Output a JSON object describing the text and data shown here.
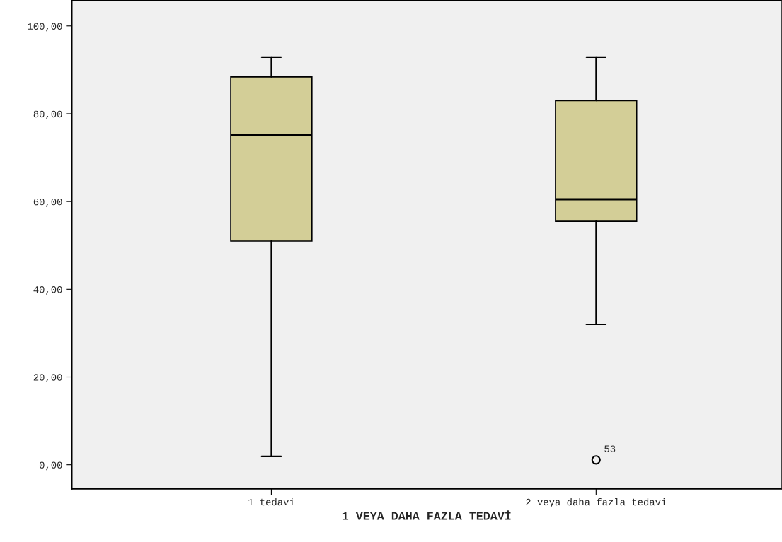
{
  "chart_data": {
    "type": "box",
    "xlabel": "1 VEYA DAHA FAZLA TEDAVİ",
    "categories": [
      "1 tedavi",
      "2 veya daha fazla tedavi"
    ],
    "boxes": [
      {
        "low": 1.9,
        "q1": 51.0,
        "median": 75.1,
        "q3": 88.4,
        "high": 92.9
      },
      {
        "low": 32.0,
        "q1": 55.5,
        "median": 60.5,
        "q3": 83.0,
        "high": 92.9,
        "outliers": [
          1.1
        ]
      }
    ],
    "color": "#d3ce97",
    "ylim": [
      -5.5,
      105.8
    ],
    "yticks": [
      {
        "value": 0,
        "label": "0,00"
      },
      {
        "value": 20,
        "label": "20,00"
      },
      {
        "value": 40,
        "label": "40,00"
      },
      {
        "value": 60,
        "label": "60,00"
      },
      {
        "value": 80,
        "label": "80,00"
      },
      {
        "value": 100,
        "label": "100,00"
      }
    ],
    "annotations": [
      "53"
    ],
    "grid": false,
    "legend": false
  }
}
